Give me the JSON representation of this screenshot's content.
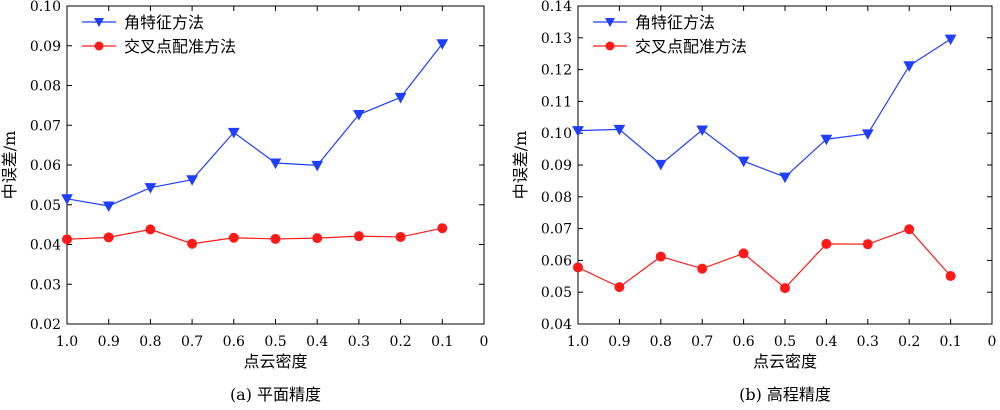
{
  "chart_data": [
    {
      "type": "line",
      "caption": "(a) 平面精度",
      "xlabel": "点云密度",
      "ylabel": "中误差/m",
      "xlim": [
        1.0,
        0
      ],
      "ylim": [
        0.02,
        0.1
      ],
      "xticks": [
        "1.0",
        "0.9",
        "0.8",
        "0.7",
        "0.6",
        "0.5",
        "0.4",
        "0.3",
        "0.2",
        "0.1",
        "0"
      ],
      "yticks": [
        "0.02",
        "0.03",
        "0.04",
        "0.05",
        "0.06",
        "0.07",
        "0.08",
        "0.09",
        "0.10"
      ],
      "grid": false,
      "legend_position": "top-left",
      "x": [
        1.0,
        0.9,
        0.8,
        0.7,
        0.6,
        0.5,
        0.4,
        0.3,
        0.2,
        0.1
      ],
      "series": [
        {
          "name": "角特征方法",
          "color": "#1f3fff",
          "marker": "triangle-down",
          "values": [
            0.0515,
            0.0497,
            0.0543,
            0.0563,
            0.0682,
            0.0605,
            0.0599,
            0.0727,
            0.077,
            0.0905
          ]
        },
        {
          "name": "交叉点配准方法",
          "color": "#ff1a1a",
          "marker": "circle",
          "values": [
            0.0413,
            0.0418,
            0.0438,
            0.0402,
            0.0417,
            0.0414,
            0.0416,
            0.0421,
            0.0419,
            0.0441
          ]
        }
      ]
    },
    {
      "type": "line",
      "caption": "(b) 高程精度",
      "xlabel": "点云密度",
      "ylabel": "中误差/m",
      "xlim": [
        1.0,
        0
      ],
      "ylim": [
        0.04,
        0.14
      ],
      "xticks": [
        "1.0",
        "0.9",
        "0.8",
        "0.7",
        "0.6",
        "0.5",
        "0.4",
        "0.3",
        "0.2",
        "0.1",
        "0"
      ],
      "yticks": [
        "0.04",
        "0.05",
        "0.06",
        "0.07",
        "0.08",
        "0.09",
        "0.10",
        "0.11",
        "0.12",
        "0.13",
        "0.14"
      ],
      "grid": false,
      "legend_position": "top-left",
      "x": [
        1.0,
        0.9,
        0.8,
        0.7,
        0.6,
        0.5,
        0.4,
        0.3,
        0.2,
        0.1
      ],
      "series": [
        {
          "name": "角特征方法",
          "color": "#1f3fff",
          "marker": "triangle-down",
          "values": [
            0.1008,
            0.1012,
            0.0902,
            0.101,
            0.0912,
            0.0862,
            0.0981,
            0.0998,
            0.1212,
            0.1296
          ]
        },
        {
          "name": "交叉点配准方法",
          "color": "#ff1a1a",
          "marker": "circle",
          "values": [
            0.0578,
            0.0516,
            0.0612,
            0.0574,
            0.0622,
            0.0513,
            0.0652,
            0.0651,
            0.0698,
            0.0551
          ]
        }
      ]
    }
  ]
}
